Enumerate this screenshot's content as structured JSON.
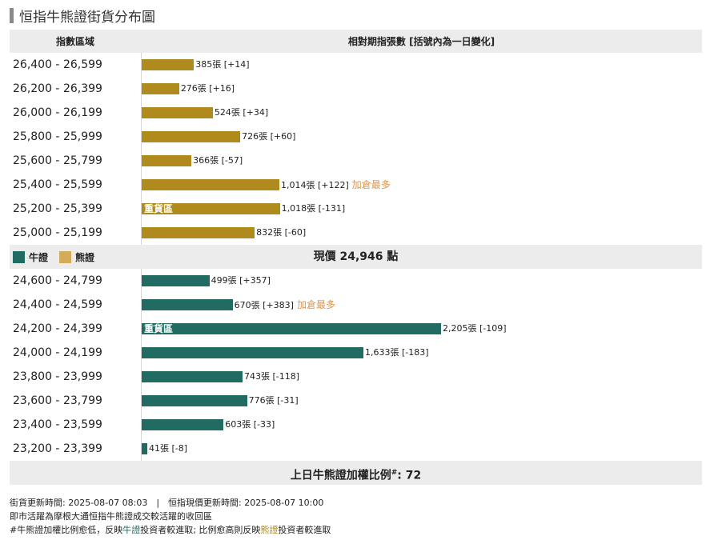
{
  "page_title": "恒指牛熊證街貨分布圖",
  "header": {
    "col_range": "指數區域",
    "col_count": "相對期指張數 [括號內為一日變化]"
  },
  "colors": {
    "bull": "#216b63",
    "bear": "#b08a1c"
  },
  "legend": {
    "bull": "牛證",
    "bear": "熊證"
  },
  "current_price": {
    "prefix": "現價",
    "value": "24,946",
    "suffix": "點"
  },
  "ratio": {
    "label": "上日牛熊證加權比例",
    "mark": "#",
    "value": ": 72"
  },
  "chart_data": {
    "type": "bar",
    "orientation": "horizontal",
    "title": "恒指牛熊證街貨分布圖",
    "xlabel": "相對期指張數 [括號內為一日變化]",
    "ylabel": "指數區域",
    "bear": [
      {
        "range": "26,400 - 26,599",
        "value": 385,
        "label": "385張 [+14]"
      },
      {
        "range": "26,200 - 26,399",
        "value": 276,
        "label": "276張 [+16]"
      },
      {
        "range": "26,000 - 26,199",
        "value": 524,
        "label": "524張 [+34]"
      },
      {
        "range": "25,800 - 25,999",
        "value": 726,
        "label": "726張 [+60]"
      },
      {
        "range": "25,600 - 25,799",
        "value": 366,
        "label": "366張 [-57]"
      },
      {
        "range": "25,400 - 25,599",
        "value": 1014,
        "label": "1,014張 [+122]",
        "note": "加倉最多"
      },
      {
        "range": "25,200 - 25,399",
        "value": 1018,
        "label": "1,018張 [-131]",
        "zone": "重貨區"
      },
      {
        "range": "25,000 - 25,199",
        "value": 832,
        "label": "832張 [-60]"
      }
    ],
    "bull": [
      {
        "range": "24,600 - 24,799",
        "value": 499,
        "label": "499張 [+357]"
      },
      {
        "range": "24,400 - 24,599",
        "value": 670,
        "label": "670張 [+383]",
        "note": "加倉最多"
      },
      {
        "range": "24,200 - 24,399",
        "value": 2205,
        "label": "2,205張 [-109]",
        "zone": "重貨區"
      },
      {
        "range": "24,000 - 24,199",
        "value": 1633,
        "label": "1,633張 [-183]"
      },
      {
        "range": "23,800 - 23,999",
        "value": 743,
        "label": "743張 [-118]"
      },
      {
        "range": "23,600 - 23,799",
        "value": 776,
        "label": "776張 [-31]"
      },
      {
        "range": "23,400 - 23,599",
        "value": 603,
        "label": "603張 [-33]"
      },
      {
        "range": "23,200 - 23,399",
        "value": 41,
        "label": "41張 [-8]"
      }
    ]
  },
  "footer": {
    "line1": "街貨更新時間: 2025-08-07 08:03　|　恒指現價更新時間: 2025-08-07 10:00",
    "line2": "即市活躍為摩根大通恒指牛熊證成交較活躍的收回區",
    "line3_a": "#牛熊證加權比例愈低，反映",
    "line3_b": "牛證",
    "line3_c": "投資者較進取; 比例愈高則反映",
    "line3_d": "熊證",
    "line3_e": "投資者較進取"
  }
}
